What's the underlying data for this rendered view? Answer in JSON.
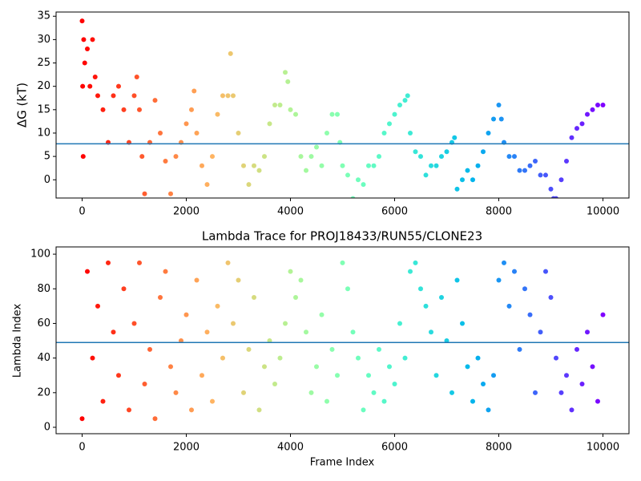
{
  "chart_data": [
    {
      "type": "scatter",
      "ylabel": "ΔG (kT)",
      "colormap": "rainbow_r",
      "xlim": [
        -500,
        10500
      ],
      "ylim": [
        -3.9,
        35.9
      ],
      "xticks": [
        0,
        2000,
        4000,
        6000,
        8000,
        10000
      ],
      "yticks": [
        0,
        5,
        10,
        15,
        20,
        25,
        30,
        35
      ],
      "hline": 7.7,
      "hline_color": "#1f77b4",
      "x": [
        0,
        10,
        20,
        30,
        50,
        100,
        150,
        200,
        250,
        300,
        400,
        500,
        600,
        700,
        800,
        900,
        1000,
        1050,
        1100,
        1150,
        1200,
        1300,
        1400,
        1500,
        1600,
        1700,
        1800,
        1900,
        2000,
        2100,
        2150,
        2200,
        2300,
        2400,
        2500,
        2600,
        2700,
        2800,
        2850,
        2900,
        3000,
        3100,
        3200,
        3300,
        3400,
        3500,
        3600,
        3700,
        3800,
        3900,
        3950,
        4000,
        4100,
        4200,
        4300,
        4400,
        4500,
        4600,
        4700,
        4800,
        4900,
        4950,
        5000,
        5100,
        5200,
        5300,
        5400,
        5500,
        5600,
        5700,
        5800,
        5900,
        6000,
        6100,
        6200,
        6250,
        6300,
        6400,
        6500,
        6600,
        6700,
        6800,
        6900,
        7000,
        7100,
        7150,
        7200,
        7300,
        7400,
        7500,
        7600,
        7700,
        7800,
        7900,
        8000,
        8050,
        8100,
        8200,
        8300,
        8400,
        8500,
        8600,
        8700,
        8800,
        8900,
        9000,
        9050,
        9100,
        9200,
        9300,
        9400,
        9500,
        9600,
        9700,
        9800,
        9900,
        10000
      ],
      "y": [
        34,
        20,
        5,
        30,
        25,
        28,
        20,
        30,
        22,
        18,
        15,
        8,
        18,
        20,
        15,
        8,
        18,
        22,
        15,
        5,
        -3,
        8,
        17,
        10,
        4,
        -3,
        5,
        8,
        12,
        15,
        19,
        10,
        3,
        -1,
        5,
        14,
        18,
        18,
        27,
        18,
        10,
        3,
        -1,
        3,
        2,
        5,
        12,
        16,
        16,
        23,
        21,
        15,
        14,
        5,
        2,
        5,
        7,
        3,
        10,
        14,
        14,
        8,
        3,
        1,
        -4,
        0,
        -1,
        3,
        3,
        5,
        10,
        12,
        14,
        16,
        17,
        18,
        10,
        6,
        5,
        1,
        3,
        3,
        5,
        6,
        8,
        9,
        -2,
        0,
        2,
        0,
        3,
        6,
        10,
        13,
        16,
        13,
        8,
        5,
        5,
        2,
        2,
        3,
        4,
        1,
        1,
        -2,
        -4,
        -4,
        0,
        4,
        9,
        11,
        12,
        14,
        15,
        16,
        16
      ]
    },
    {
      "type": "scatter",
      "title": "Lambda Trace for PROJ18433/RUN55/CLONE23",
      "xlabel": "Frame Index",
      "ylabel": "Lambda Index",
      "colormap": "rainbow_r",
      "xlim": [
        -500,
        10500
      ],
      "ylim": [
        -3.7,
        104.2
      ],
      "xticks": [
        0,
        2000,
        4000,
        6000,
        8000,
        10000
      ],
      "yticks": [
        0,
        20,
        40,
        60,
        80,
        100
      ],
      "hline": 49,
      "hline_color": "#1f77b4",
      "x": [
        0,
        100,
        200,
        300,
        400,
        500,
        600,
        700,
        800,
        900,
        1000,
        1100,
        1200,
        1300,
        1400,
        1500,
        1600,
        1700,
        1800,
        1900,
        2000,
        2100,
        2200,
        2300,
        2400,
        2500,
        2600,
        2700,
        2800,
        2900,
        3000,
        3100,
        3200,
        3300,
        3400,
        3500,
        3600,
        3700,
        3800,
        3900,
        4000,
        4100,
        4200,
        4300,
        4400,
        4500,
        4600,
        4700,
        4800,
        4900,
        5000,
        5100,
        5200,
        5300,
        5400,
        5500,
        5600,
        5700,
        5800,
        5900,
        6000,
        6100,
        6200,
        6300,
        6400,
        6500,
        6600,
        6700,
        6800,
        6900,
        7000,
        7100,
        7200,
        7300,
        7400,
        7500,
        7600,
        7700,
        7800,
        7900,
        8000,
        8100,
        8200,
        8300,
        8400,
        8500,
        8600,
        8700,
        8800,
        8900,
        9000,
        9100,
        9200,
        9300,
        9400,
        9500,
        9600,
        9700,
        9800,
        9900,
        10000
      ],
      "y": [
        5,
        90,
        40,
        70,
        15,
        95,
        55,
        30,
        80,
        10,
        60,
        95,
        25,
        45,
        5,
        75,
        90,
        35,
        20,
        50,
        65,
        10,
        85,
        30,
        55,
        15,
        70,
        40,
        95,
        60,
        85,
        20,
        45,
        75,
        10,
        35,
        50,
        25,
        40,
        60,
        90,
        75,
        85,
        55,
        20,
        35,
        65,
        15,
        45,
        30,
        95,
        80,
        55,
        40,
        10,
        30,
        20,
        45,
        15,
        35,
        25,
        60,
        40,
        90,
        95,
        80,
        70,
        55,
        30,
        75,
        50,
        20,
        85,
        60,
        35,
        15,
        40,
        25,
        10,
        30,
        85,
        95,
        70,
        90,
        45,
        80,
        65,
        20,
        55,
        90,
        75,
        40,
        20,
        30,
        10,
        45,
        25,
        55,
        35,
        15,
        65
      ]
    }
  ]
}
